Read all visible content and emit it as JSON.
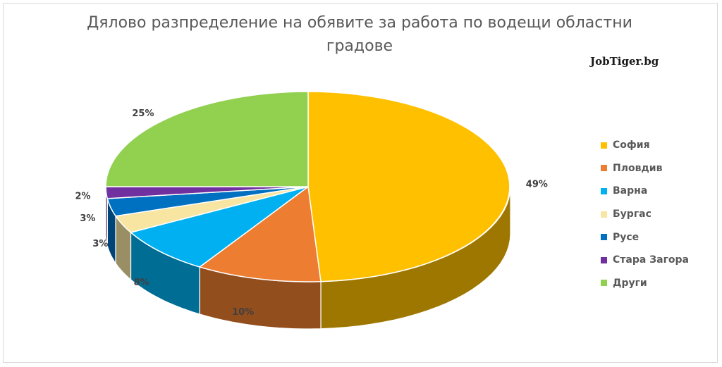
{
  "chart_data": {
    "type": "pie",
    "title": "Дялово разпределение на обявите за работа по водещи областни градове",
    "watermark": "JobTiger.bg",
    "legend_position": "right",
    "slices": [
      {
        "label": "София",
        "value": 49,
        "value_label": "49%",
        "color": "#FFC000"
      },
      {
        "label": "Пловдив",
        "value": 10,
        "value_label": "10%",
        "color": "#ED7D31"
      },
      {
        "label": "Варна",
        "value": 8,
        "value_label": "8%",
        "color": "#00B0F0"
      },
      {
        "label": "Бургас",
        "value": 3,
        "value_label": "3%",
        "color": "#F8E5A2"
      },
      {
        "label": "Русе",
        "value": 3,
        "value_label": "3%",
        "color": "#0070C0"
      },
      {
        "label": "Стара Загора",
        "value": 2,
        "value_label": "2%",
        "color": "#7030A0"
      },
      {
        "label": "Други",
        "value": 25,
        "value_label": "25%",
        "color": "#92D050"
      }
    ]
  }
}
